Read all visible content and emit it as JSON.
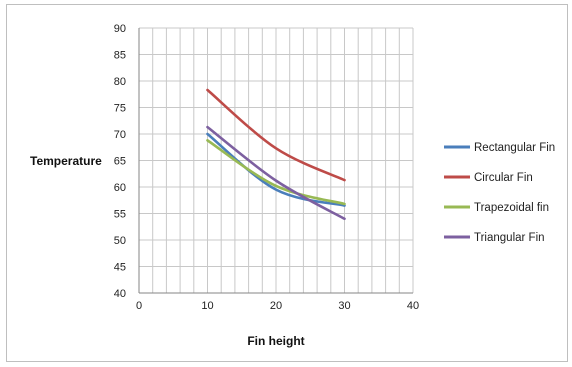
{
  "chart_data": {
    "type": "line",
    "title": "",
    "xlabel": "Fin height",
    "ylabel": "Temperature",
    "xlim": [
      0,
      40
    ],
    "ylim": [
      40,
      90
    ],
    "x_ticks": [
      0,
      10,
      20,
      30,
      40
    ],
    "y_ticks": [
      40,
      45,
      50,
      55,
      60,
      65,
      70,
      75,
      80,
      85,
      90
    ],
    "grid": true,
    "legend_position": "right",
    "series": [
      {
        "name": "Rectangular Fin",
        "color": "#4a7ebb",
        "x": [
          10,
          20,
          30
        ],
        "y": [
          70.0,
          59.5,
          56.5
        ]
      },
      {
        "name": "Circular Fin",
        "color": "#be4b48",
        "x": [
          10,
          20,
          30
        ],
        "y": [
          78.3,
          67.3,
          61.3
        ]
      },
      {
        "name": "Trapezoidal fin",
        "color": "#98b954",
        "x": [
          10,
          20,
          30
        ],
        "y": [
          68.8,
          60.2,
          56.8
        ]
      },
      {
        "name": "Triangular Fin",
        "color": "#7d60a0",
        "x": [
          10,
          20,
          30
        ],
        "y": [
          71.3,
          61.2,
          54.0
        ]
      }
    ]
  }
}
